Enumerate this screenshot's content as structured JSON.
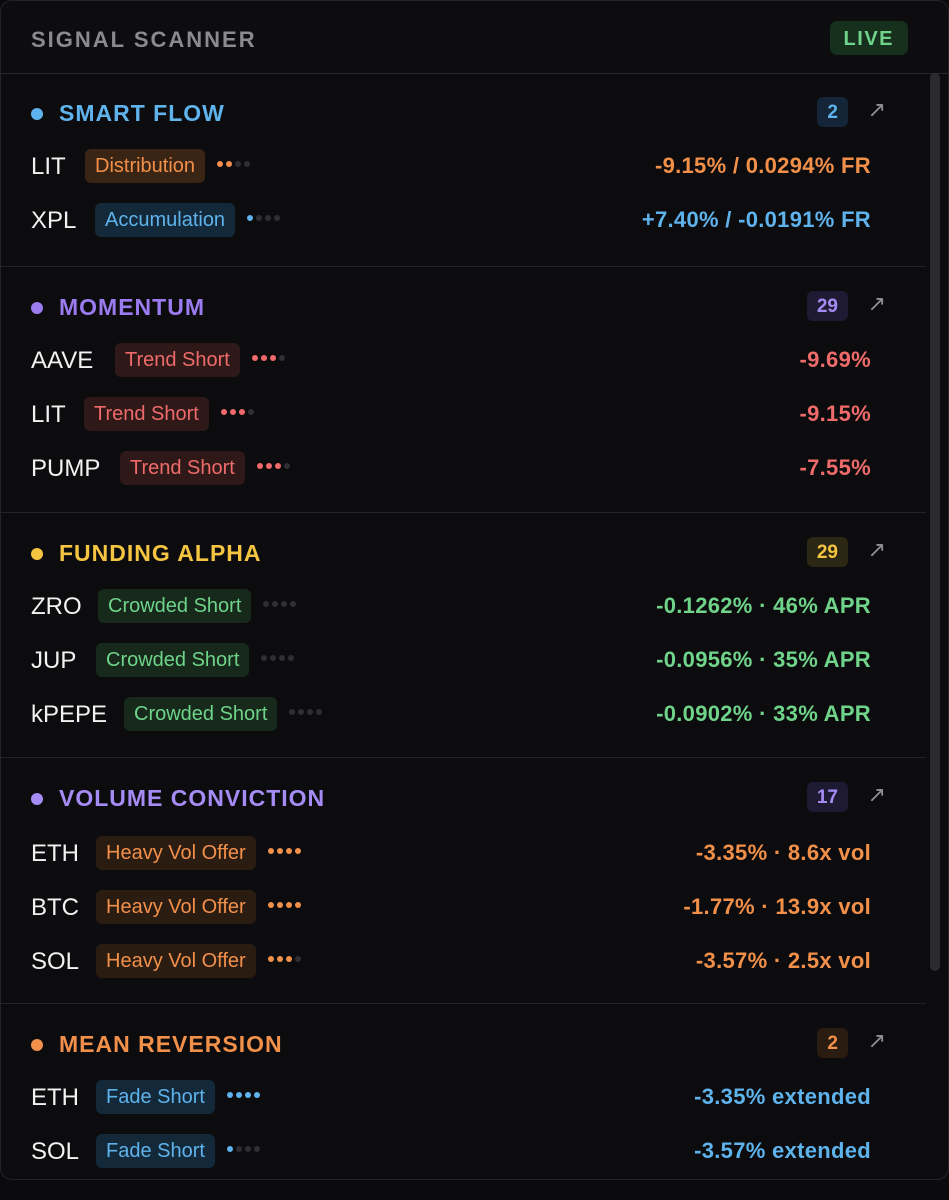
{
  "header": {
    "title": "SIGNAL SCANNER",
    "live_label": "LIVE"
  },
  "colors": {
    "blue": "#5fb3ec",
    "purple": "#9b7bf0",
    "yellow": "#f5c542",
    "orange": "#f2904a",
    "red": "#ef6b6b",
    "green": "#6fd48a",
    "lavender": "#a58cf5"
  },
  "sections": [
    {
      "title": "SMART FLOW",
      "count": "2",
      "arrow_icon": "arrow-up-right-icon",
      "rows": [
        {
          "ticker": "LIT",
          "badge": "Distribution",
          "strength": 2,
          "value": "-9.15% / 0.0294% FR"
        },
        {
          "ticker": "XPL",
          "badge": "Accumulation",
          "strength": 1,
          "value": "+7.40% / -0.0191% FR"
        }
      ]
    },
    {
      "title": "MOMENTUM",
      "count": "29",
      "arrow_icon": "arrow-up-right-icon",
      "rows": [
        {
          "ticker": "AAVE",
          "badge": "Trend Short",
          "strength": 3,
          "value": "-9.69%"
        },
        {
          "ticker": "LIT",
          "badge": "Trend Short",
          "strength": 3,
          "value": "-9.15%"
        },
        {
          "ticker": "PUMP",
          "badge": "Trend Short",
          "strength": 3,
          "value": "-7.55%"
        }
      ]
    },
    {
      "title": "FUNDING ALPHA",
      "count": "29",
      "arrow_icon": "arrow-up-right-icon",
      "rows": [
        {
          "ticker": "ZRO",
          "badge": "Crowded Short",
          "strength": 0,
          "value": "-0.1262% · 46% APR"
        },
        {
          "ticker": "JUP",
          "badge": "Crowded Short",
          "strength": 0,
          "value": "-0.0956% · 35% APR"
        },
        {
          "ticker": "kPEPE",
          "badge": "Crowded Short",
          "strength": 0,
          "value": "-0.0902% · 33% APR"
        }
      ]
    },
    {
      "title": "VOLUME CONVICTION",
      "count": "17",
      "arrow_icon": "arrow-up-right-icon",
      "rows": [
        {
          "ticker": "ETH",
          "badge": "Heavy Vol Offer",
          "strength": 4,
          "value": "-3.35% · 8.6x vol"
        },
        {
          "ticker": "BTC",
          "badge": "Heavy Vol Offer",
          "strength": 4,
          "value": "-1.77% · 13.9x vol"
        },
        {
          "ticker": "SOL",
          "badge": "Heavy Vol Offer",
          "strength": 3,
          "value": "-3.57% · 2.5x vol"
        }
      ]
    },
    {
      "title": "MEAN REVERSION",
      "count": "2",
      "arrow_icon": "arrow-up-right-icon",
      "rows": [
        {
          "ticker": "ETH",
          "badge": "Fade Short",
          "strength": 4,
          "value": "-3.35% extended"
        },
        {
          "ticker": "SOL",
          "badge": "Fade Short",
          "strength": 1,
          "value": "-3.57% extended"
        }
      ]
    }
  ]
}
